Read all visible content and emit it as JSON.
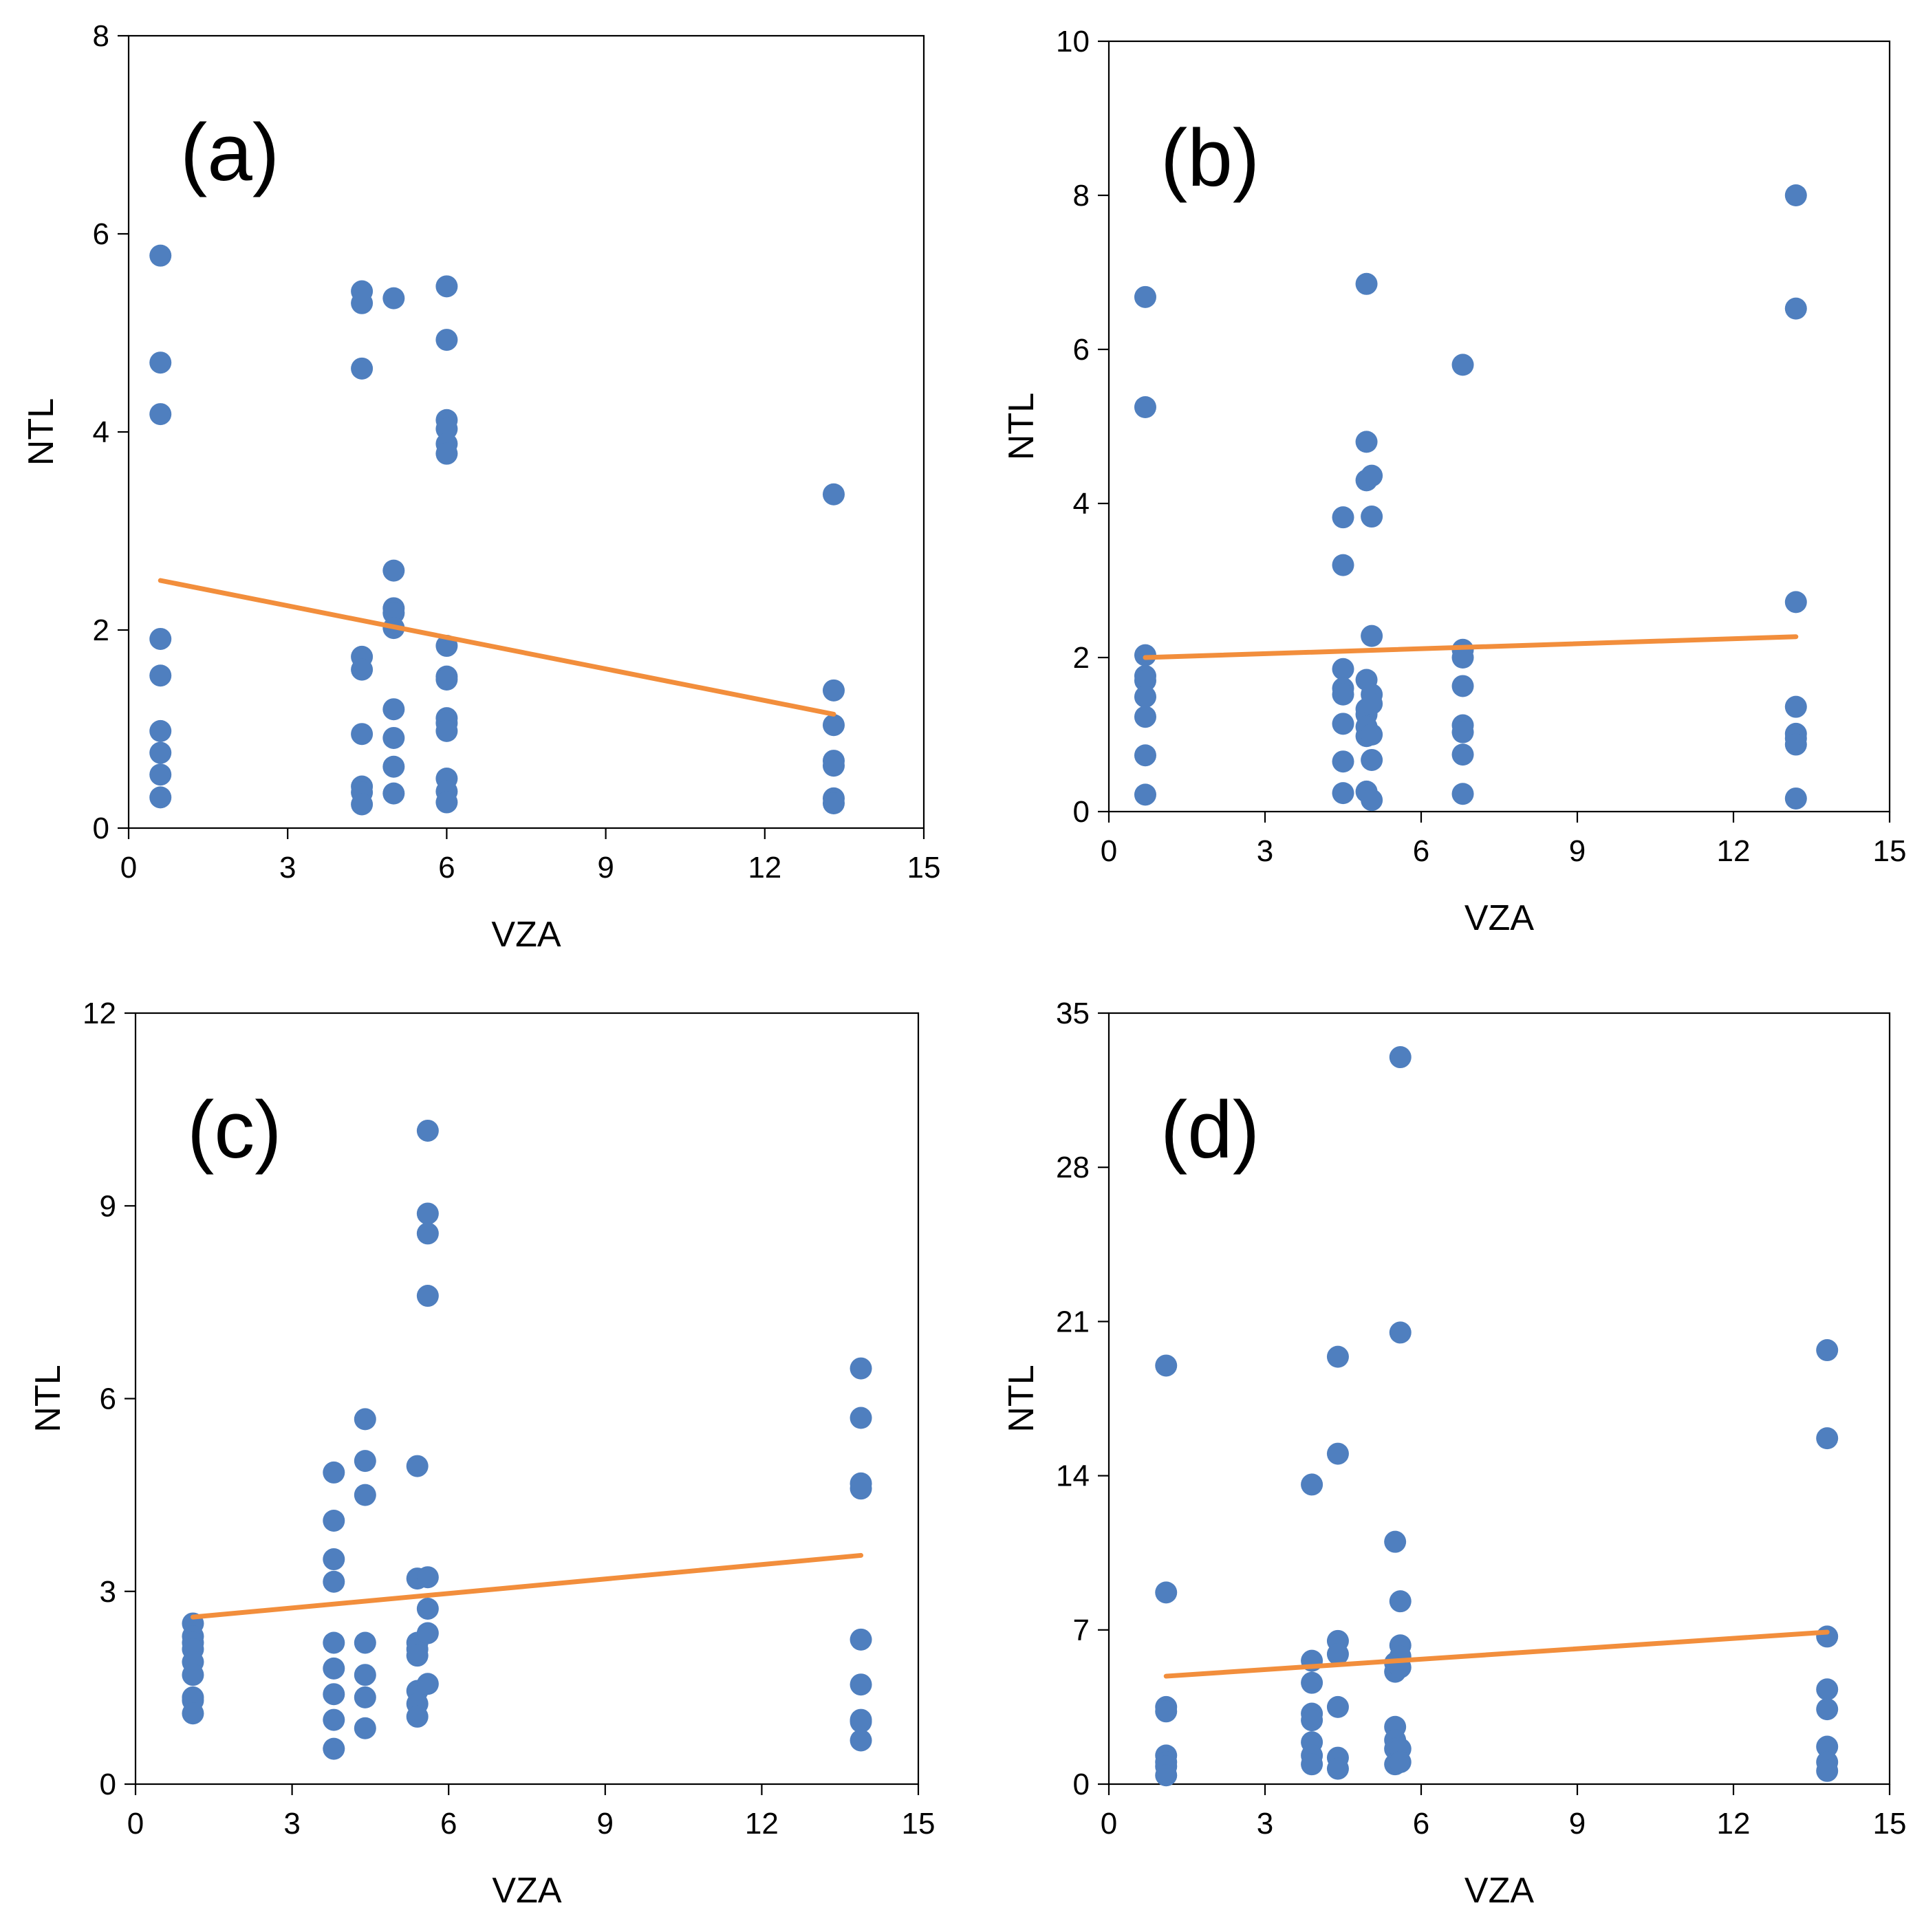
{
  "colors": {
    "point": "#4F7FBF",
    "trend": "#F28E3C",
    "axis": "#000000",
    "background": "#FFFFFF"
  },
  "chart_data": [
    {
      "type": "scatter",
      "label": "(a)",
      "xlabel": "VZA",
      "ylabel": "NTL",
      "xlim": [
        0,
        15
      ],
      "ylim": [
        0,
        8
      ],
      "xticks": [
        "0",
        "3",
        "6",
        "9",
        "12",
        "15"
      ],
      "yticks": [
        "0",
        "2",
        "4",
        "6",
        "8"
      ],
      "trend": {
        "x": [
          0.6,
          13.3
        ],
        "y": [
          2.5,
          1.15
        ]
      },
      "points": [
        [
          0.6,
          5.78
        ],
        [
          0.6,
          4.7
        ],
        [
          0.6,
          4.18
        ],
        [
          0.6,
          1.91
        ],
        [
          0.6,
          1.54
        ],
        [
          0.6,
          0.98
        ],
        [
          0.6,
          0.76
        ],
        [
          0.6,
          0.54
        ],
        [
          0.6,
          0.31
        ],
        [
          4.4,
          5.42
        ],
        [
          4.4,
          5.3
        ],
        [
          4.4,
          4.64
        ],
        [
          4.4,
          1.73
        ],
        [
          4.4,
          1.6
        ],
        [
          4.4,
          0.95
        ],
        [
          4.4,
          0.42
        ],
        [
          4.4,
          0.36
        ],
        [
          4.4,
          0.24
        ],
        [
          5.0,
          5.35
        ],
        [
          5.0,
          2.6
        ],
        [
          5.0,
          2.22
        ],
        [
          5.0,
          2.17
        ],
        [
          5.0,
          2.02
        ],
        [
          5.0,
          1.2
        ],
        [
          5.0,
          0.91
        ],
        [
          5.0,
          0.62
        ],
        [
          5.0,
          0.35
        ],
        [
          6.0,
          5.47
        ],
        [
          6.0,
          4.93
        ],
        [
          6.0,
          4.12
        ],
        [
          6.0,
          4.03
        ],
        [
          6.0,
          3.88
        ],
        [
          6.0,
          3.78
        ],
        [
          6.0,
          1.84
        ],
        [
          6.0,
          1.53
        ],
        [
          6.0,
          1.5
        ],
        [
          6.0,
          1.11
        ],
        [
          6.0,
          1.06
        ],
        [
          6.0,
          0.98
        ],
        [
          6.0,
          0.5
        ],
        [
          6.0,
          0.37
        ],
        [
          6.0,
          0.26
        ],
        [
          13.3,
          3.37
        ],
        [
          13.3,
          1.39
        ],
        [
          13.3,
          1.04
        ],
        [
          13.3,
          0.68
        ],
        [
          13.3,
          0.63
        ],
        [
          13.3,
          0.3
        ],
        [
          13.3,
          0.25
        ]
      ]
    },
    {
      "type": "scatter",
      "label": "(b)",
      "xlabel": "VZA",
      "ylabel": "NTL",
      "xlim": [
        0,
        15
      ],
      "ylim": [
        0,
        10
      ],
      "xticks": [
        "0",
        "3",
        "6",
        "9",
        "12",
        "15"
      ],
      "yticks": [
        "0",
        "2",
        "4",
        "6",
        "8",
        "10"
      ],
      "trend": {
        "x": [
          0.7,
          13.2
        ],
        "y": [
          2.0,
          2.27
        ]
      },
      "points": [
        [
          0.7,
          6.68
        ],
        [
          0.7,
          5.25
        ],
        [
          0.7,
          2.03
        ],
        [
          0.7,
          1.76
        ],
        [
          0.7,
          1.7
        ],
        [
          0.7,
          1.49
        ],
        [
          0.7,
          1.23
        ],
        [
          0.7,
          0.73
        ],
        [
          0.7,
          0.22
        ],
        [
          4.5,
          3.82
        ],
        [
          4.5,
          3.2
        ],
        [
          4.5,
          1.85
        ],
        [
          4.5,
          1.6
        ],
        [
          4.5,
          1.52
        ],
        [
          4.5,
          1.14
        ],
        [
          4.5,
          0.65
        ],
        [
          4.5,
          0.24
        ],
        [
          4.95,
          6.85
        ],
        [
          4.95,
          4.8
        ],
        [
          4.95,
          4.3
        ],
        [
          4.95,
          1.71
        ],
        [
          4.95,
          1.33
        ],
        [
          4.95,
          1.26
        ],
        [
          4.95,
          1.1
        ],
        [
          4.95,
          0.98
        ],
        [
          4.95,
          0.26
        ],
        [
          5.05,
          4.36
        ],
        [
          5.05,
          3.83
        ],
        [
          5.05,
          2.28
        ],
        [
          5.05,
          1.52
        ],
        [
          5.05,
          1.4
        ],
        [
          5.05,
          1.0
        ],
        [
          5.05,
          0.67
        ],
        [
          5.05,
          0.15
        ],
        [
          6.8,
          5.8
        ],
        [
          6.8,
          2.1
        ],
        [
          6.8,
          2.0
        ],
        [
          6.8,
          1.63
        ],
        [
          6.8,
          1.12
        ],
        [
          6.8,
          1.03
        ],
        [
          6.8,
          0.74
        ],
        [
          6.8,
          0.23
        ],
        [
          13.2,
          8.0
        ],
        [
          13.2,
          6.53
        ],
        [
          13.2,
          2.72
        ],
        [
          13.2,
          1.36
        ],
        [
          13.2,
          1.01
        ],
        [
          13.2,
          0.95
        ],
        [
          13.2,
          0.87
        ],
        [
          13.2,
          0.17
        ]
      ]
    },
    {
      "type": "scatter",
      "label": "(c)",
      "xlabel": "VZA",
      "ylabel": "NTL",
      "xlim": [
        0,
        15
      ],
      "ylim": [
        0,
        12
      ],
      "xticks": [
        "0",
        "3",
        "6",
        "9",
        "12",
        "15"
      ],
      "yticks": [
        "0",
        "3",
        "6",
        "9",
        "12"
      ],
      "trend": {
        "x": [
          1.1,
          13.9
        ],
        "y": [
          2.6,
          3.56
        ]
      },
      "points": [
        [
          1.1,
          2.5
        ],
        [
          1.1,
          2.3
        ],
        [
          1.1,
          2.2
        ],
        [
          1.1,
          2.1
        ],
        [
          1.1,
          1.9
        ],
        [
          1.1,
          1.7
        ],
        [
          1.1,
          1.35
        ],
        [
          1.1,
          1.3
        ],
        [
          1.1,
          1.1
        ],
        [
          3.8,
          4.85
        ],
        [
          3.8,
          4.1
        ],
        [
          3.8,
          3.5
        ],
        [
          3.8,
          3.15
        ],
        [
          3.8,
          2.2
        ],
        [
          3.8,
          1.8
        ],
        [
          3.8,
          1.4
        ],
        [
          3.8,
          1.0
        ],
        [
          3.8,
          0.55
        ],
        [
          4.4,
          5.68
        ],
        [
          4.4,
          5.03
        ],
        [
          4.4,
          4.5
        ],
        [
          4.4,
          2.2
        ],
        [
          4.4,
          1.7
        ],
        [
          4.4,
          1.35
        ],
        [
          4.4,
          0.87
        ],
        [
          5.4,
          4.95
        ],
        [
          5.4,
          3.2
        ],
        [
          5.4,
          2.2
        ],
        [
          5.4,
          2.1
        ],
        [
          5.4,
          2.0
        ],
        [
          5.4,
          1.45
        ],
        [
          5.4,
          1.25
        ],
        [
          5.4,
          1.05
        ],
        [
          5.6,
          10.17
        ],
        [
          5.6,
          8.88
        ],
        [
          5.6,
          8.57
        ],
        [
          5.6,
          7.6
        ],
        [
          5.6,
          3.22
        ],
        [
          5.6,
          2.73
        ],
        [
          5.6,
          2.35
        ],
        [
          5.6,
          1.56
        ],
        [
          13.9,
          6.47
        ],
        [
          13.9,
          5.7
        ],
        [
          13.9,
          4.68
        ],
        [
          13.9,
          4.6
        ],
        [
          13.9,
          2.25
        ],
        [
          13.9,
          1.55
        ],
        [
          13.9,
          1.0
        ],
        [
          13.9,
          0.97
        ],
        [
          13.9,
          0.68
        ]
      ]
    },
    {
      "type": "scatter",
      "label": "(d)",
      "xlabel": "VZA",
      "ylabel": "NTL",
      "xlim": [
        0,
        15
      ],
      "ylim": [
        0,
        35
      ],
      "xticks": [
        "0",
        "3",
        "6",
        "9",
        "12",
        "15"
      ],
      "yticks": [
        "0",
        "7",
        "14",
        "21",
        "28",
        "35"
      ],
      "trend": {
        "x": [
          1.1,
          13.8
        ],
        "y": [
          4.9,
          6.9
        ]
      },
      "points": [
        [
          1.1,
          19.0
        ],
        [
          1.1,
          8.7
        ],
        [
          1.1,
          3.5
        ],
        [
          1.1,
          3.3
        ],
        [
          1.1,
          1.3
        ],
        [
          1.1,
          1.0
        ],
        [
          1.1,
          0.8
        ],
        [
          1.1,
          0.4
        ],
        [
          3.9,
          13.6
        ],
        [
          3.9,
          5.6
        ],
        [
          3.9,
          4.6
        ],
        [
          3.9,
          3.2
        ],
        [
          3.9,
          2.9
        ],
        [
          3.9,
          1.9
        ],
        [
          3.9,
          1.3
        ],
        [
          3.9,
          0.9
        ],
        [
          4.4,
          19.4
        ],
        [
          4.4,
          15.0
        ],
        [
          4.4,
          6.5
        ],
        [
          4.4,
          5.9
        ],
        [
          4.4,
          3.5
        ],
        [
          4.4,
          1.2
        ],
        [
          4.4,
          0.7
        ],
        [
          5.5,
          11.0
        ],
        [
          5.5,
          5.5
        ],
        [
          5.5,
          5.1
        ],
        [
          5.5,
          2.6
        ],
        [
          5.5,
          2.0
        ],
        [
          5.5,
          1.6
        ],
        [
          5.5,
          0.9
        ],
        [
          5.6,
          33.0
        ],
        [
          5.6,
          20.5
        ],
        [
          5.6,
          8.3
        ],
        [
          5.6,
          6.3
        ],
        [
          5.6,
          5.8
        ],
        [
          5.6,
          5.3
        ],
        [
          5.6,
          1.6
        ],
        [
          5.6,
          1.0
        ],
        [
          13.8,
          19.7
        ],
        [
          13.8,
          15.7
        ],
        [
          13.8,
          6.7
        ],
        [
          13.8,
          4.3
        ],
        [
          13.8,
          3.4
        ],
        [
          13.8,
          1.7
        ],
        [
          13.8,
          1.0
        ],
        [
          13.8,
          0.6
        ]
      ]
    }
  ]
}
